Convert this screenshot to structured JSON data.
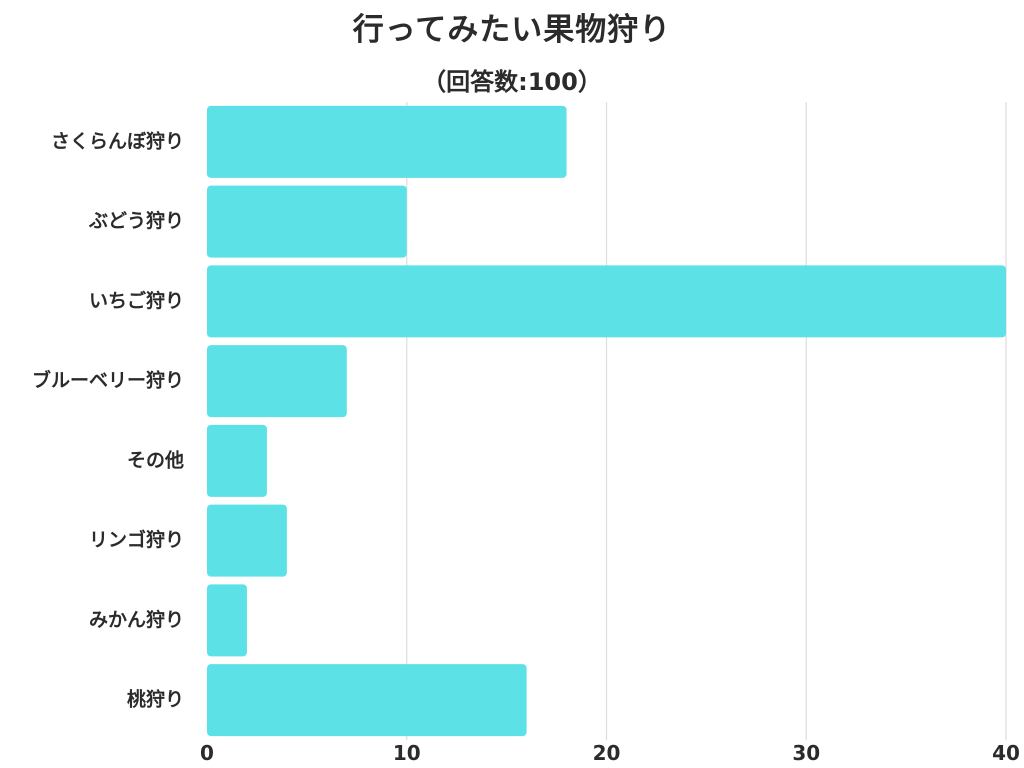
{
  "chart_data": {
    "type": "bar",
    "orientation": "horizontal",
    "title": "行ってみたい果物狩り",
    "subtitle": "（回答数:100）",
    "categories": [
      "さくらんぼ狩り",
      "ぶどう狩り",
      "いちご狩り",
      "ブルーベリー狩り",
      "その他",
      "リンゴ狩り",
      "みかん狩り",
      "桃狩り"
    ],
    "values": [
      18,
      10,
      40,
      7,
      3,
      4,
      2,
      16
    ],
    "xlim": [
      0,
      40
    ],
    "x_ticks": [
      "0",
      "10",
      "20",
      "30",
      "40"
    ],
    "xlabel": "",
    "ylabel": "",
    "grid": "vertical",
    "legend": "none",
    "bar_color": "#5ce1e6",
    "grid_color": "#dddddd",
    "text_color": "#2b2b2b"
  }
}
